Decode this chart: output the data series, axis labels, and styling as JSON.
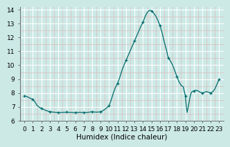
{
  "title": "",
  "xlabel": "Humidex (Indice chaleur)",
  "ylabel": "",
  "xlim": [
    -0.5,
    23.5
  ],
  "ylim": [
    6,
    14.2
  ],
  "yticks": [
    6,
    7,
    8,
    9,
    10,
    11,
    12,
    13,
    14
  ],
  "xticks": [
    0,
    1,
    2,
    3,
    4,
    5,
    6,
    7,
    8,
    9,
    10,
    11,
    12,
    13,
    14,
    15,
    16,
    17,
    18,
    19,
    20,
    21,
    22,
    23
  ],
  "bg_color": "#cce9e6",
  "grid_major_color": "#ffffff",
  "grid_minor_color": "#ddbcbc",
  "line_color": "#006b6b",
  "marker_color": "#006b6b",
  "x": [
    0,
    0.25,
    0.5,
    0.75,
    1.0,
    1.25,
    1.5,
    1.75,
    2.0,
    2.25,
    2.5,
    2.75,
    3.0,
    3.25,
    3.5,
    3.75,
    4.0,
    4.25,
    4.5,
    4.75,
    5.0,
    5.25,
    5.5,
    5.75,
    6.0,
    6.25,
    6.5,
    6.75,
    7.0,
    7.25,
    7.5,
    7.75,
    8.0,
    8.25,
    8.5,
    8.75,
    9.0,
    9.25,
    9.5,
    9.75,
    10.0,
    10.25,
    10.5,
    10.75,
    11.0,
    11.25,
    11.5,
    11.75,
    12.0,
    12.25,
    12.5,
    12.75,
    13.0,
    13.25,
    13.5,
    13.75,
    14.0,
    14.25,
    14.5,
    14.75,
    15.0,
    15.25,
    15.5,
    15.75,
    16.0,
    16.25,
    16.5,
    16.75,
    17.0,
    17.25,
    17.5,
    17.75,
    18.0,
    18.25,
    18.5,
    18.75,
    19.0,
    19.1,
    19.2,
    19.35,
    19.5,
    19.65,
    19.8,
    20.0,
    20.25,
    20.5,
    20.75,
    21.0,
    21.25,
    21.5,
    21.75,
    22.0,
    22.25,
    22.5,
    22.75,
    23.0
  ],
  "y": [
    7.8,
    7.75,
    7.68,
    7.6,
    7.55,
    7.35,
    7.1,
    6.97,
    6.9,
    6.82,
    6.75,
    6.7,
    6.65,
    6.63,
    6.62,
    6.6,
    6.59,
    6.59,
    6.6,
    6.61,
    6.62,
    6.61,
    6.6,
    6.59,
    6.58,
    6.59,
    6.61,
    6.6,
    6.58,
    6.59,
    6.6,
    6.63,
    6.65,
    6.63,
    6.62,
    6.63,
    6.65,
    6.72,
    6.82,
    6.95,
    7.1,
    7.5,
    8.0,
    8.4,
    8.7,
    9.1,
    9.6,
    10.0,
    10.35,
    10.7,
    11.05,
    11.4,
    11.75,
    12.1,
    12.45,
    12.8,
    13.1,
    13.5,
    13.8,
    13.95,
    13.92,
    13.75,
    13.55,
    13.25,
    12.85,
    12.35,
    11.7,
    11.15,
    10.5,
    10.3,
    10.0,
    9.6,
    9.2,
    8.8,
    8.55,
    8.45,
    7.8,
    7.15,
    6.6,
    7.0,
    7.55,
    7.95,
    8.1,
    8.15,
    8.2,
    8.15,
    8.05,
    8.0,
    8.05,
    8.1,
    8.05,
    8.0,
    8.1,
    8.3,
    8.65,
    9.0
  ],
  "marker_x": [
    0,
    1,
    2,
    3,
    4,
    5,
    6,
    7,
    8,
    9,
    10,
    11,
    12,
    13,
    14,
    15,
    16,
    17,
    18,
    19,
    20,
    21,
    22,
    23
  ],
  "marker_y": [
    7.8,
    7.55,
    6.9,
    6.65,
    6.59,
    6.62,
    6.58,
    6.58,
    6.65,
    6.65,
    7.1,
    8.7,
    10.35,
    11.75,
    13.1,
    13.92,
    12.85,
    10.5,
    9.2,
    7.8,
    8.15,
    8.0,
    8.0,
    9.0
  ],
  "tick_fontsize": 6.5,
  "xlabel_fontsize": 7.5
}
